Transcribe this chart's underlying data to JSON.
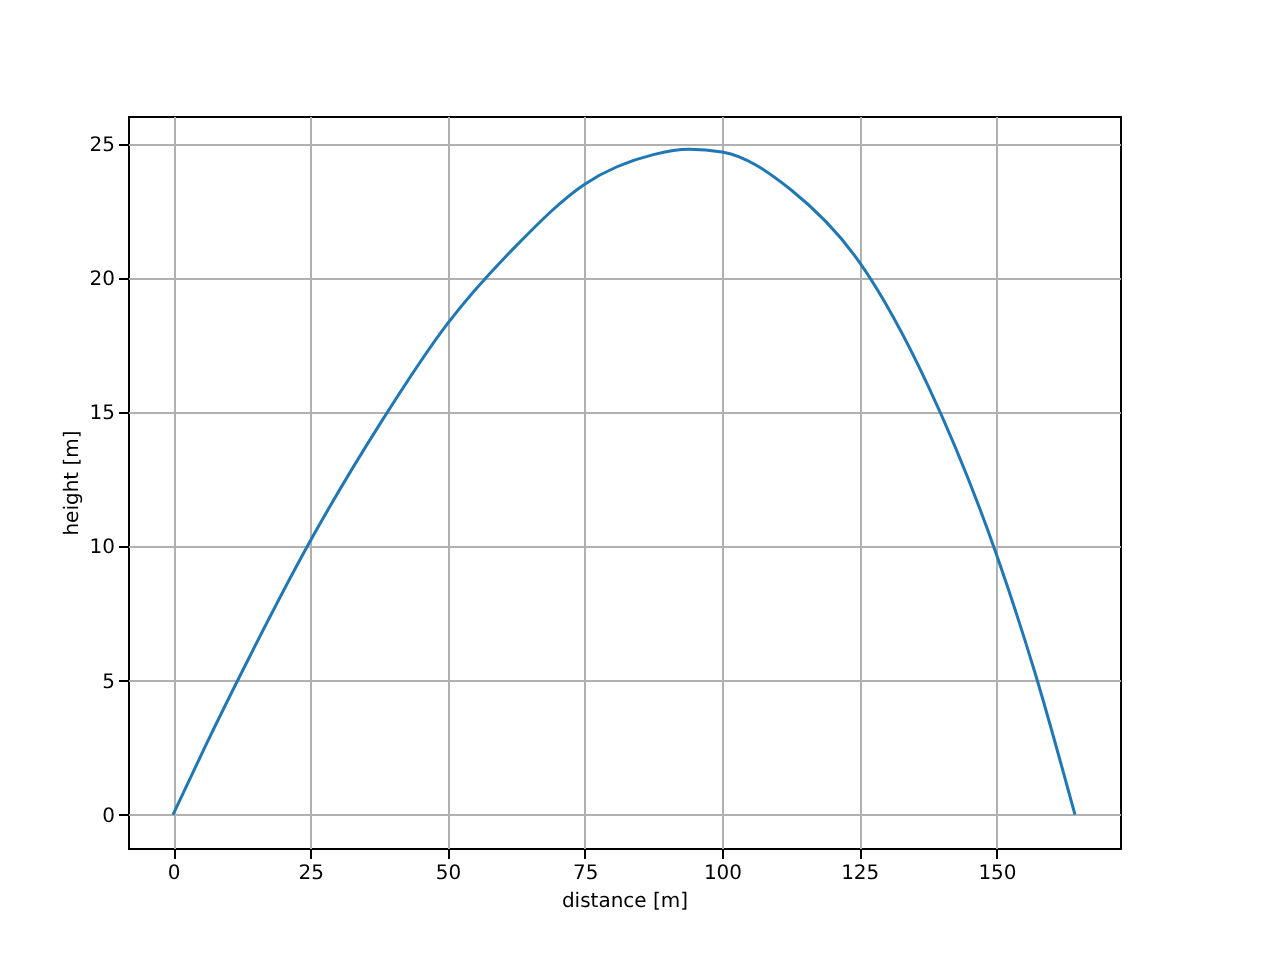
{
  "chart_data": {
    "type": "line",
    "xlabel": "distance [m]",
    "ylabel": "height [m]",
    "x": [
      0,
      6,
      12.5,
      25,
      37.5,
      50,
      62.5,
      75,
      87.5,
      94,
      100,
      112.5,
      125,
      137.5,
      150,
      157,
      164.3
    ],
    "series": [
      {
        "color": "#1f77b4",
        "values": [
          0,
          2.6,
          5.3,
          10.2,
          14.5,
          18.3,
          21.2,
          23.5,
          24.6,
          24.8,
          24.7,
          23.3,
          20.6,
          16,
          9.7,
          5.3,
          0
        ]
      }
    ],
    "xlim": [
      -8.2,
      172.5
    ],
    "ylim": [
      -1.24,
      26.04
    ],
    "xticks": [
      0,
      25,
      50,
      75,
      100,
      125,
      150
    ],
    "yticks": [
      0,
      5,
      10,
      15,
      20,
      25
    ],
    "grid": true,
    "marker": "none",
    "line_style": "solid"
  }
}
